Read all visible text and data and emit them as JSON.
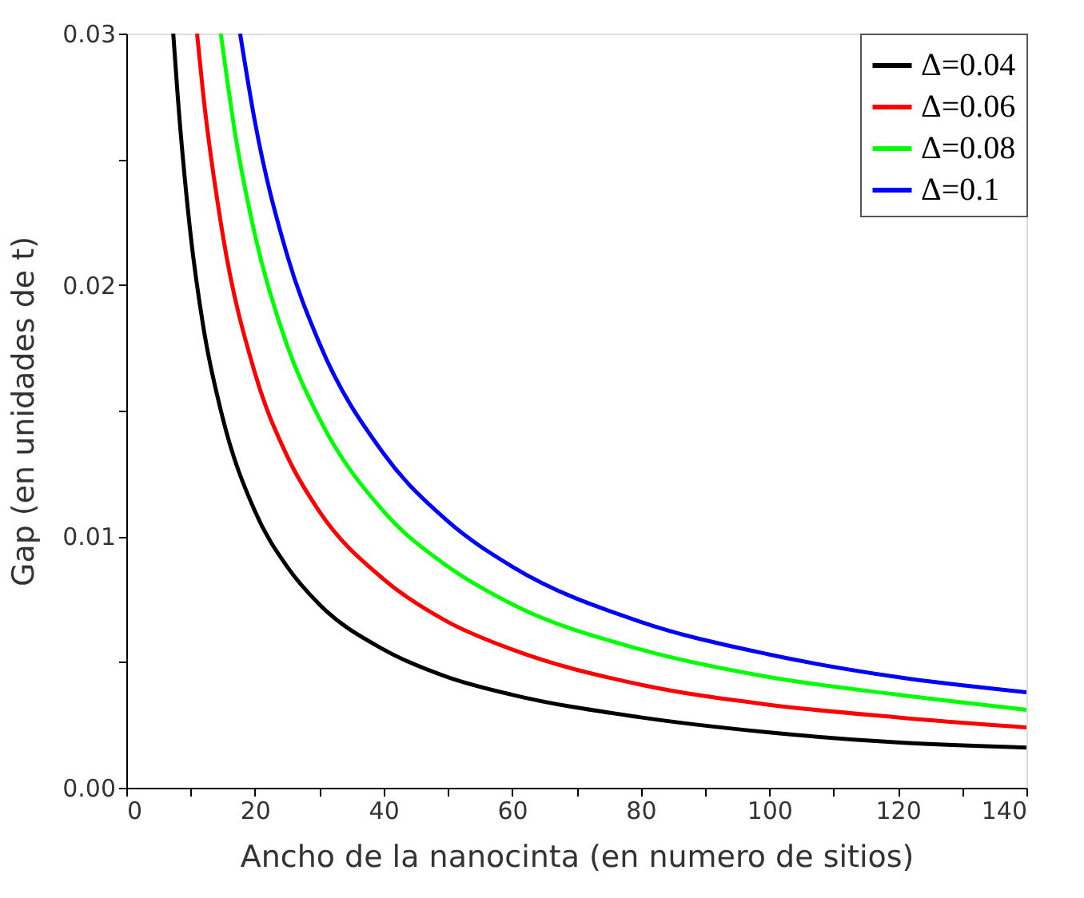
{
  "chart_data": {
    "type": "line",
    "xlabel": "Ancho de la nanocinta (en numero de sitios)",
    "ylabel": "Gap (en unidades de t)",
    "xlim": [
      0,
      140
    ],
    "xticks": [
      0,
      {
        "value": 10,
        "label": null
      },
      20,
      {
        "value": 30,
        "label": null
      },
      40,
      {
        "value": 50,
        "label": null
      },
      60,
      {
        "value": 70,
        "label": null
      },
      80,
      {
        "value": 90,
        "label": null
      },
      100,
      {
        "value": 110,
        "label": null
      },
      120,
      {
        "value": 130,
        "label": null
      },
      140
    ],
    "ylim": [
      0,
      0.03
    ],
    "yticks": [
      {
        "value": 0,
        "label": "0.00"
      },
      {
        "value": 0.005,
        "label": null
      },
      {
        "value": 0.01,
        "label": "0.01"
      },
      {
        "value": 0.015,
        "label": null
      },
      {
        "value": 0.02,
        "label": "0.02"
      },
      {
        "value": 0.025,
        "label": null
      },
      {
        "value": 0.03,
        "label": "0.03"
      }
    ],
    "grid": false,
    "legend": "top right",
    "marker": "none",
    "line_style": "solid",
    "series": [
      {
        "name": "Δ=0.04",
        "color": "#000000",
        "x": [
          7.3,
          8,
          10,
          12,
          15,
          20,
          25,
          30,
          40,
          50,
          60,
          80,
          100,
          120,
          140
        ],
        "values": [
          0.03,
          0.0275,
          0.022,
          0.0183,
          0.0147,
          0.011,
          0.0088,
          0.0073,
          0.0055,
          0.0044,
          0.0037,
          0.0028,
          0.0022,
          0.0018,
          0.0016
        ]
      },
      {
        "name": "Δ=0.06",
        "color": "#ff0000",
        "x": [
          11,
          12,
          15,
          20,
          25,
          30,
          40,
          50,
          60,
          80,
          100,
          120,
          140
        ],
        "values": [
          0.03,
          0.0275,
          0.022,
          0.0165,
          0.0132,
          0.011,
          0.0083,
          0.0066,
          0.0055,
          0.0041,
          0.0033,
          0.0028,
          0.0024
        ]
      },
      {
        "name": "Δ=0.08",
        "color": "#00ff00",
        "x": [
          14.7,
          17,
          20,
          25,
          30,
          40,
          50,
          60,
          80,
          100,
          120,
          140
        ],
        "values": [
          0.03,
          0.0259,
          0.022,
          0.0176,
          0.0147,
          0.011,
          0.0088,
          0.0073,
          0.0055,
          0.0044,
          0.0037,
          0.0031
        ]
      },
      {
        "name": "Δ=0.1",
        "color": "#0000ff",
        "x": [
          17.7,
          20,
          25,
          30,
          40,
          50,
          60,
          80,
          100,
          120,
          140
        ],
        "values": [
          0.03,
          0.0265,
          0.0212,
          0.0177,
          0.0133,
          0.0106,
          0.0088,
          0.0066,
          0.0053,
          0.0044,
          0.0038
        ]
      }
    ]
  }
}
